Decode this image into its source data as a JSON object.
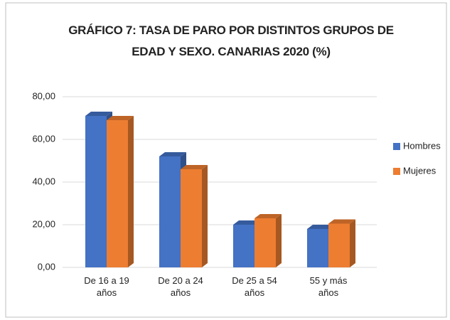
{
  "chart_data": {
    "type": "bar3d",
    "title": "GRÁFICO 7: TASA DE PARO POR DISTINTOS GRUPOS DE EDAD Y SEXO. CANARIAS 2020 (%)",
    "categories": [
      "De 16 a 19 años",
      "De 20 a 24 años",
      "De 25 a 54 años",
      "55 y más años"
    ],
    "series": [
      {
        "name": "Hombres",
        "color": "#4472c4",
        "values": [
          71,
          52,
          20,
          18
        ]
      },
      {
        "name": "Mujeres",
        "color": "#ed7d31",
        "values": [
          69,
          46,
          23,
          20.5
        ]
      }
    ],
    "ylim": [
      0,
      80
    ],
    "yticks": [
      {
        "value": 0,
        "label": "0,00"
      },
      {
        "value": 20,
        "label": "20,00"
      },
      {
        "value": 40,
        "label": "40,00"
      },
      {
        "value": 60,
        "label": "60,00"
      },
      {
        "value": 80,
        "label": "80,00"
      }
    ],
    "grid": true,
    "legend": "right"
  }
}
